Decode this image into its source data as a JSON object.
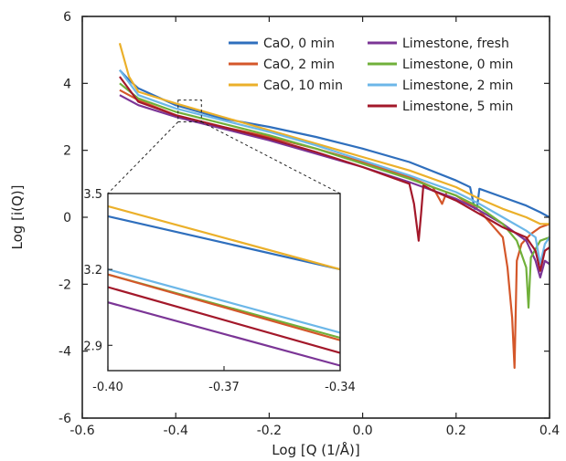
{
  "chart_data": {
    "type": "line",
    "title": "",
    "xlabel": "Log [Q (1/Å)]",
    "ylabel": "Log [i(Q)]",
    "xlim": [
      -0.6,
      0.4
    ],
    "ylim": [
      -6,
      6
    ],
    "xticks": [
      -0.6,
      -0.4,
      -0.2,
      0.0,
      0.2,
      0.4
    ],
    "xtick_labels": [
      "-0.6",
      "-0.4",
      "-0.2",
      "0.0",
      "0.2",
      "0.4"
    ],
    "yticks": [
      -6,
      -4,
      -2,
      0,
      2,
      4,
      6
    ],
    "ytick_labels": [
      "-6",
      "-4",
      "-2",
      "0",
      "2",
      "4",
      "6"
    ],
    "grid": false,
    "legend_placement": "top-right",
    "series": [
      {
        "name": "CaO, 0 min",
        "color": "#2f6fbd",
        "x": [
          -0.52,
          -0.5,
          -0.48,
          -0.4,
          -0.3,
          -0.2,
          -0.1,
          0.0,
          0.1,
          0.2,
          0.23,
          0.24,
          0.245,
          0.25,
          0.3,
          0.35,
          0.38,
          0.4
        ],
        "y": [
          4.4,
          4.1,
          3.85,
          3.35,
          2.95,
          2.7,
          2.4,
          2.05,
          1.65,
          1.1,
          0.9,
          0.25,
          0.3,
          0.85,
          0.6,
          0.35,
          0.15,
          0.0
        ]
      },
      {
        "name": "CaO, 2 min",
        "color": "#d4572a",
        "x": [
          -0.52,
          -0.48,
          -0.4,
          -0.3,
          -0.2,
          -0.1,
          0.0,
          0.1,
          0.15,
          0.17,
          0.18,
          0.2,
          0.25,
          0.3,
          0.31,
          0.32,
          0.325,
          0.33,
          0.34,
          0.36,
          0.38,
          0.4
        ],
        "y": [
          3.8,
          3.5,
          3.05,
          2.7,
          2.4,
          2.05,
          1.65,
          1.2,
          0.9,
          0.4,
          0.75,
          0.65,
          0.2,
          -0.6,
          -1.5,
          -3.0,
          -4.5,
          -1.3,
          -0.8,
          -0.5,
          -0.3,
          -0.2
        ]
      },
      {
        "name": "CaO, 10 min",
        "color": "#ebb02a",
        "x": [
          -0.52,
          -0.5,
          -0.48,
          -0.4,
          -0.3,
          -0.2,
          -0.1,
          0.0,
          0.1,
          0.2,
          0.25,
          0.3,
          0.35,
          0.38,
          0.4
        ],
        "y": [
          5.2,
          4.2,
          3.75,
          3.4,
          3.0,
          2.6,
          2.2,
          1.8,
          1.4,
          0.9,
          0.55,
          0.25,
          0.0,
          -0.2,
          -0.2
        ]
      },
      {
        "name": "Limestone, fresh",
        "color": "#7b3596",
        "x": [
          -0.52,
          -0.48,
          -0.4,
          -0.3,
          -0.2,
          -0.1,
          0.0,
          0.1,
          0.2,
          0.25,
          0.3,
          0.35,
          0.37,
          0.38,
          0.39,
          0.4
        ],
        "y": [
          3.65,
          3.35,
          3.0,
          2.65,
          2.3,
          1.9,
          1.5,
          1.05,
          0.55,
          0.2,
          -0.2,
          -0.7,
          -1.3,
          -1.8,
          -1.3,
          -1.4
        ]
      },
      {
        "name": "Limestone, 0 min",
        "color": "#70b03a",
        "x": [
          -0.52,
          -0.48,
          -0.4,
          -0.3,
          -0.2,
          -0.1,
          0.0,
          0.1,
          0.2,
          0.25,
          0.3,
          0.33,
          0.35,
          0.355,
          0.36,
          0.38,
          0.4
        ],
        "y": [
          4.0,
          3.55,
          3.15,
          2.8,
          2.45,
          2.05,
          1.6,
          1.15,
          0.65,
          0.3,
          -0.2,
          -0.7,
          -1.5,
          -2.7,
          -1.2,
          -0.7,
          -0.6
        ]
      },
      {
        "name": "Limestone, 2 min",
        "color": "#6cb7e8",
        "x": [
          -0.52,
          -0.48,
          -0.4,
          -0.3,
          -0.2,
          -0.1,
          0.0,
          0.1,
          0.2,
          0.25,
          0.3,
          0.35,
          0.37,
          0.38,
          0.39,
          0.4
        ],
        "y": [
          4.4,
          3.65,
          3.25,
          2.9,
          2.55,
          2.15,
          1.7,
          1.25,
          0.75,
          0.4,
          0.0,
          -0.4,
          -0.6,
          -1.4,
          -0.8,
          -0.6
        ]
      },
      {
        "name": "Limestone, 5 min",
        "color": "#a3182a",
        "x": [
          -0.52,
          -0.48,
          -0.4,
          -0.3,
          -0.2,
          -0.1,
          0.0,
          0.05,
          0.1,
          0.11,
          0.12,
          0.125,
          0.13,
          0.15,
          0.2,
          0.25,
          0.3,
          0.35,
          0.37,
          0.38,
          0.39,
          0.4
        ],
        "y": [
          4.2,
          3.45,
          3.05,
          2.7,
          2.35,
          1.95,
          1.5,
          1.25,
          1.0,
          0.4,
          -0.7,
          0.1,
          0.95,
          0.8,
          0.5,
          0.1,
          -0.3,
          -0.6,
          -1.0,
          -1.6,
          -1.0,
          -0.9
        ]
      }
    ],
    "inset": {
      "xlim": [
        -0.4,
        -0.34
      ],
      "ylim": [
        2.8,
        3.5
      ],
      "xticks": [
        -0.4,
        -0.37,
        -0.34
      ],
      "xtick_labels": [
        "-0.40",
        "-0.37",
        "-0.34"
      ],
      "yticks": [
        2.9,
        3.2,
        3.5
      ],
      "ytick_labels": [
        "2.9",
        "3.2",
        "3.5"
      ],
      "zoom_region": {
        "x": [
          -0.395,
          -0.345
        ],
        "y": [
          2.85,
          3.5
        ]
      },
      "series": [
        {
          "color": "#2f6fbd",
          "x": [
            -0.4,
            -0.34
          ],
          "y": [
            3.41,
            3.2
          ]
        },
        {
          "color": "#ebb02a",
          "x": [
            -0.4,
            -0.34
          ],
          "y": [
            3.45,
            3.2
          ]
        },
        {
          "color": "#6cb7e8",
          "x": [
            -0.4,
            -0.34
          ],
          "y": [
            3.2,
            2.95
          ]
        },
        {
          "color": "#70b03a",
          "x": [
            -0.4,
            -0.34
          ],
          "y": [
            3.18,
            2.93
          ]
        },
        {
          "color": "#d4572a",
          "x": [
            -0.4,
            -0.34
          ],
          "y": [
            3.18,
            2.92
          ]
        },
        {
          "color": "#a3182a",
          "x": [
            -0.4,
            -0.34
          ],
          "y": [
            3.13,
            2.87
          ]
        },
        {
          "color": "#7b3596",
          "x": [
            -0.4,
            -0.34
          ],
          "y": [
            3.07,
            2.82
          ]
        }
      ]
    }
  }
}
